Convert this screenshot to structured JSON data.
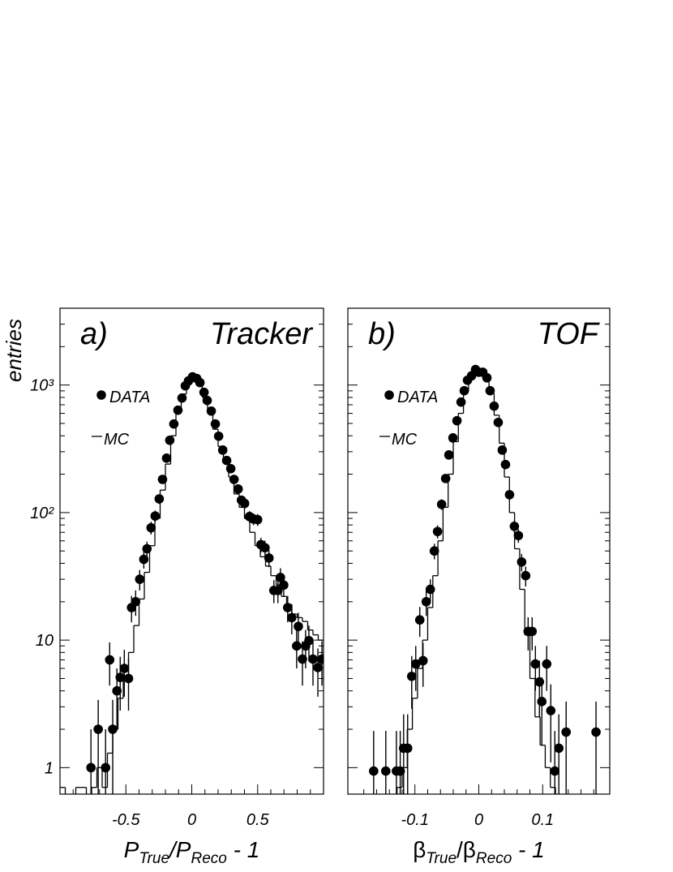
{
  "chart_data": [
    {
      "type": "histogram",
      "label": "a)",
      "title": "Tracker",
      "y_label": "entries",
      "x_label": [
        "P",
        "True",
        "/P",
        "Reco",
        " - 1"
      ],
      "log_y": true,
      "legend": "upper left",
      "xlim": [
        -1,
        1
      ],
      "xticks": [
        -0.5,
        0,
        0.5
      ],
      "xminorticks": [
        -0.9,
        -0.8,
        -0.7,
        -0.6,
        -0.4,
        -0.3,
        -0.2,
        -0.1,
        0.1,
        0.2,
        0.3,
        0.4,
        0.6,
        0.7,
        0.8,
        0.9
      ],
      "ylim": [
        0.62,
        4000
      ],
      "yticks": [
        1,
        10,
        {
          "value": 100,
          "label": "10²"
        },
        {
          "value": 1000,
          "label": "10³"
        }
      ],
      "yminorticks": [
        2,
        3,
        4,
        5,
        6,
        7,
        8,
        9,
        20,
        30,
        40,
        50,
        60,
        70,
        80,
        90,
        200,
        300,
        400,
        500,
        600,
        700,
        800,
        900,
        2000,
        3000,
        4000
      ],
      "series": [
        {
          "name": "DATA",
          "color": "#000000",
          "x": [
            -0.765,
            -0.71,
            -0.654,
            -0.623,
            -0.6,
            -0.568,
            -0.543,
            -0.512,
            -0.48,
            -0.457,
            -0.426,
            -0.395,
            -0.364,
            -0.34,
            -0.309,
            -0.278,
            -0.247,
            -0.222,
            -0.191,
            -0.167,
            -0.136,
            -0.105,
            -0.074,
            -0.049,
            -0.025,
            0.006,
            0.037,
            0.062,
            0.093,
            0.117,
            0.148,
            0.179,
            0.204,
            0.235,
            0.265,
            0.296,
            0.321,
            0.352,
            0.377,
            0.401,
            0.438,
            0.469,
            0.5,
            0.525,
            0.556,
            0.586,
            0.623,
            0.654,
            0.673,
            0.698,
            0.728,
            0.759,
            0.796,
            0.809,
            0.84,
            0.864,
            0.889,
            0.92,
            0.957,
            0.988
          ],
          "values": [
            1,
            2,
            1,
            7,
            2,
            4,
            5.1,
            6,
            5,
            18,
            20,
            30,
            43,
            52,
            76,
            94,
            128,
            182,
            267,
            369,
            495,
            635,
            791,
            986,
            1077,
            1159,
            1127,
            1045,
            877,
            757,
            625,
            495,
            397,
            309,
            256,
            221,
            182,
            153,
            125,
            118,
            93,
            89,
            88,
            56,
            53,
            44,
            24.5,
            24.5,
            31,
            27,
            18,
            15,
            9,
            12.8,
            7.1,
            9,
            9.9,
            7.1,
            6.1,
            7.1
          ],
          "errors": [
            1,
            1.4,
            1,
            2.6,
            1.4,
            2,
            2.3,
            2.4,
            2.2,
            4.2,
            4.5,
            5.5,
            6.6,
            7.2,
            8.7,
            9.7,
            11,
            13,
            16,
            19,
            22,
            25,
            28,
            31,
            33,
            34,
            34,
            32,
            30,
            28,
            25,
            22,
            20,
            18,
            16,
            15,
            13,
            12,
            11,
            11,
            9.6,
            9.4,
            9.4,
            7.5,
            7.3,
            6.6,
            5,
            5,
            5.6,
            5.2,
            4.2,
            3.9,
            3,
            3.6,
            2.7,
            3,
            3.1,
            2.7,
            2.5,
            2.7
          ]
        },
        {
          "name": "MC",
          "color": "#000000",
          "bins": [
            -1,
            -0.96,
            -0.92,
            -0.88,
            -0.84,
            -0.8,
            -0.76,
            -0.72,
            -0.68,
            -0.64,
            -0.6,
            -0.56,
            -0.52,
            -0.48,
            -0.44,
            -0.4,
            -0.36,
            -0.32,
            -0.28,
            -0.24,
            -0.2,
            -0.16,
            -0.12,
            -0.08,
            -0.04,
            0,
            0.04,
            0.08,
            0.12,
            0.16,
            0.2,
            0.24,
            0.28,
            0.32,
            0.36,
            0.4,
            0.44,
            0.48,
            0.52,
            0.56,
            0.6,
            0.64,
            0.68,
            0.72,
            0.76,
            0.8,
            0.84,
            0.88,
            0.92,
            0.96,
            1
          ],
          "values": [
            0.7,
            0,
            0,
            0.7,
            0.7,
            0,
            0.7,
            1,
            0.7,
            1.3,
            2,
            3.5,
            5,
            8,
            13,
            21,
            34,
            55,
            90,
            150,
            240,
            400,
            600,
            850,
            1100,
            1150,
            1000,
            800,
            600,
            450,
            330,
            250,
            190,
            140,
            110,
            90,
            70,
            55,
            45,
            38,
            32,
            27,
            22,
            19,
            16,
            15,
            14,
            12,
            11,
            10
          ]
        }
      ]
    },
    {
      "type": "histogram",
      "label": "b)",
      "title": "TOF",
      "x_label": [
        "β",
        "True",
        "/β",
        "Reco",
        " - 1"
      ],
      "log_y": true,
      "legend": "upper left",
      "xlim": [
        -0.205,
        0.205
      ],
      "xticks": [
        -0.1,
        0,
        0.1
      ],
      "xminorticks": [
        -0.18,
        -0.16,
        -0.14,
        -0.12,
        -0.08,
        -0.06,
        -0.04,
        -0.02,
        0.02,
        0.04,
        0.06,
        0.08,
        0.12,
        0.14,
        0.16,
        0.18
      ],
      "ylim": [
        0.62,
        4000
      ],
      "ymajorticks": [
        1,
        10,
        100,
        1000
      ],
      "yminorticks": [
        2,
        3,
        4,
        5,
        6,
        7,
        8,
        9,
        20,
        30,
        40,
        50,
        60,
        70,
        80,
        90,
        200,
        300,
        400,
        500,
        600,
        700,
        800,
        900,
        2000,
        3000,
        4000
      ],
      "series": [
        {
          "name": "DATA",
          "color": "#000000",
          "x": [
            -0.1646,
            -0.1456,
            -0.129,
            -0.123,
            -0.1177,
            -0.1114,
            -0.105,
            -0.0987,
            -0.0924,
            -0.0873,
            -0.0823,
            -0.0759,
            -0.0696,
            -0.0646,
            -0.0582,
            -0.0519,
            -0.0468,
            -0.0405,
            -0.0342,
            -0.0278,
            -0.0228,
            -0.0177,
            -0.0114,
            -0.0051,
            0,
            0.0063,
            0.0127,
            0.0177,
            0.024,
            0.0304,
            0.0367,
            0.0418,
            0.0481,
            0.0557,
            0.062,
            0.0671,
            0.0734,
            0.0772,
            0.0835,
            0.0886,
            0.0949,
            0.0987,
            0.1063,
            0.1127,
            0.119,
            0.1253,
            0.1367,
            0.1835
          ],
          "values": [
            0.94,
            0.94,
            0.94,
            0.94,
            1.42,
            1.42,
            5.2,
            6.5,
            14.4,
            6.9,
            20,
            25,
            50,
            71,
            116,
            185,
            283,
            385,
            525,
            735,
            902,
            1090,
            1180,
            1322,
            1260,
            1260,
            1140,
            902,
            683,
            509,
            309,
            238,
            138,
            78,
            66,
            41,
            32,
            11.7,
            11.7,
            6.5,
            4.7,
            3.3,
            6.5,
            2.8,
            0.94,
            1.42,
            1.9,
            1.9
          ],
          "errors": [
            1,
            1,
            1,
            1,
            1.2,
            1.2,
            2.3,
            2.5,
            3.8,
            2.6,
            4.5,
            5,
            7,
            8.4,
            11,
            14,
            17,
            20,
            23,
            27,
            30,
            33,
            34,
            36,
            35,
            35,
            34,
            30,
            26,
            23,
            18,
            15,
            12,
            8.8,
            8.1,
            6.4,
            5.7,
            3.4,
            3.4,
            2.5,
            2.2,
            1.8,
            2.5,
            1.7,
            1,
            1.2,
            1.4,
            1.4
          ]
        },
        {
          "name": "MC",
          "color": "#000000",
          "bins": [
            -0.2,
            -0.192,
            -0.184,
            -0.176,
            -0.168,
            -0.16,
            -0.152,
            -0.144,
            -0.136,
            -0.128,
            -0.12,
            -0.112,
            -0.104,
            -0.096,
            -0.088,
            -0.08,
            -0.072,
            -0.064,
            -0.056,
            -0.048,
            -0.04,
            -0.032,
            -0.024,
            -0.016,
            -0.008,
            0,
            0.008,
            0.016,
            0.024,
            0.032,
            0.04,
            0.048,
            0.056,
            0.064,
            0.072,
            0.08,
            0.088,
            0.096,
            0.104,
            0.112,
            0.12,
            0.128,
            0.136,
            0.144,
            0.152,
            0.16,
            0.168,
            0.176,
            0.184,
            0.192,
            0.2
          ],
          "values": [
            0,
            0,
            0,
            0,
            0,
            0,
            0,
            0,
            0,
            0.7,
            1,
            2,
            3.5,
            6,
            10,
            18,
            32,
            60,
            110,
            200,
            360,
            600,
            900,
            1150,
            1300,
            1280,
            1120,
            860,
            580,
            350,
            190,
            100,
            52,
            25,
            11,
            5,
            2.5,
            1.5,
            1,
            0.7,
            0,
            0,
            0,
            0,
            0,
            0,
            0,
            0,
            0,
            0
          ]
        }
      ]
    }
  ]
}
